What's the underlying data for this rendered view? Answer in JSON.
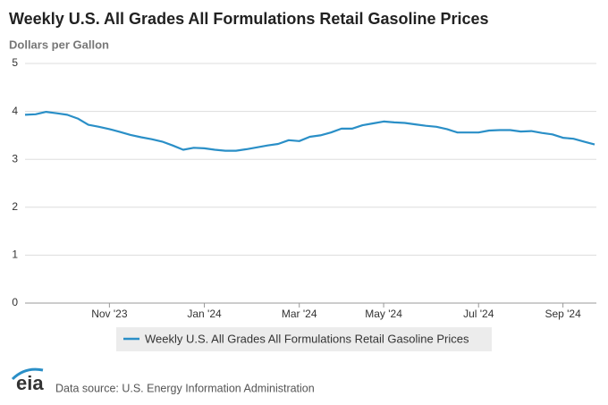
{
  "chart_data": {
    "type": "line",
    "title": "Weekly U.S. All Grades All Formulations Retail Gasoline Prices",
    "y_label": "Dollars per Gallon",
    "categories": [
      null,
      null,
      null,
      null,
      null,
      null,
      null,
      null,
      "Nov '23",
      null,
      null,
      null,
      null,
      null,
      null,
      null,
      null,
      "Jan '24",
      null,
      null,
      null,
      null,
      null,
      null,
      null,
      null,
      "Mar '24",
      null,
      null,
      null,
      null,
      null,
      null,
      null,
      "May '24",
      null,
      null,
      null,
      null,
      null,
      null,
      null,
      null,
      "Jul '24",
      null,
      null,
      null,
      null,
      null,
      null,
      null,
      "Sep '24",
      null,
      null,
      null
    ],
    "series": [
      {
        "name": "Weekly U.S. All Grades All Formulations Retail Gasoline Prices",
        "color": "#2a8fc7",
        "values": [
          3.93,
          3.94,
          3.99,
          3.96,
          3.93,
          3.85,
          3.72,
          3.68,
          3.63,
          3.57,
          3.51,
          3.46,
          3.42,
          3.37,
          3.29,
          3.2,
          3.24,
          3.23,
          3.2,
          3.18,
          3.18,
          3.21,
          3.25,
          3.29,
          3.32,
          3.4,
          3.38,
          3.47,
          3.5,
          3.56,
          3.64,
          3.64,
          3.71,
          3.75,
          3.79,
          3.77,
          3.76,
          3.73,
          3.7,
          3.68,
          3.63,
          3.56,
          3.56,
          3.56,
          3.6,
          3.61,
          3.61,
          3.58,
          3.59,
          3.55,
          3.52,
          3.45,
          3.43,
          3.37,
          3.31
        ]
      }
    ],
    "ylim": [
      0,
      5
    ],
    "yticks": [
      0,
      1,
      2,
      3,
      4,
      5
    ],
    "grid": true
  },
  "footer": {
    "logo": "eia",
    "source": "Data source: U.S. Energy Information Administration"
  }
}
